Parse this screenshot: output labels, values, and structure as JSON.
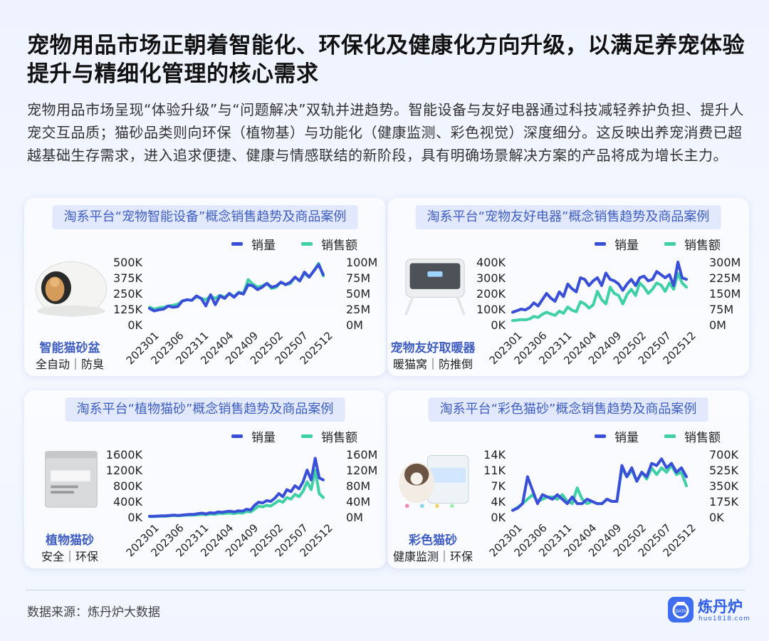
{
  "header": {
    "title": "宠物用品市场正朝着智能化、环保化及健康化方向升级，以满足养宠体验提升与精细化管理的核心需求",
    "description": "宠物用品市场呈现“体验升级”与“问题解决”双轨并进趋势。智能设备与友好电器通过科技减轻养护负担、提升人宠交互品质；猫砂品类则向环保（植物基）与功能化（健康监测、彩色视觉）深度细分。这反映出养宠消费已超越基础生存需求，进入追求便捷、健康与情感联结的新阶段，具有明确场景解决方案的产品将成为增长主力。"
  },
  "legend": {
    "volume": "销量",
    "sales": "销售额"
  },
  "colors": {
    "volume": "#3a4fd8",
    "sales": "#3fd1a5",
    "accent": "#3f5ec0"
  },
  "x_ticks": [
    "202301",
    "202306",
    "202311",
    "202404",
    "202409",
    "202502",
    "202507",
    "202512"
  ],
  "chart_data": [
    {
      "type": "line",
      "title": "淘系平台“宠物智能设备”概念销售趋势及商品案例",
      "product": {
        "name": "智能猫砂盆",
        "tags": "全自动｜防臭",
        "icon": "cat-litter-box-image"
      },
      "y_left": {
        "ticks": [
          "500K",
          "375K",
          "250K",
          "125K",
          "0K"
        ],
        "range": [
          0,
          500
        ]
      },
      "y_right": {
        "ticks": [
          "100M",
          "75M",
          "50M",
          "25M",
          "0M"
        ],
        "range": [
          0,
          100
        ]
      },
      "series": [
        {
          "name": "销量",
          "axis": "left",
          "values": [
            130,
            110,
            120,
            125,
            150,
            140,
            145,
            190,
            200,
            195,
            230,
            210,
            150,
            240,
            160,
            230,
            210,
            250,
            220,
            255,
            245,
            320,
            310,
            280,
            300,
            330,
            300,
            310,
            340,
            320,
            340,
            380,
            350,
            420,
            380,
            430,
            480,
            400
          ]
        },
        {
          "name": "销售额",
          "axis": "right",
          "values": [
            28,
            25,
            27,
            28,
            30,
            31,
            33,
            38,
            40,
            39,
            45,
            42,
            40,
            46,
            42,
            47,
            44,
            50,
            45,
            52,
            50,
            72,
            65,
            60,
            62,
            66,
            58,
            60,
            68,
            64,
            66,
            76,
            70,
            82,
            76,
            86,
            98,
            78
          ]
        }
      ]
    },
    {
      "type": "line",
      "title": "淘系平台“宠物友好电器”概念销售趋势及商品案例",
      "product": {
        "name": "宠物友好取暖器",
        "tags": "暖猫窝｜防推倒",
        "icon": "heater-image"
      },
      "y_left": {
        "ticks": [
          "400K",
          "300K",
          "200K",
          "100K",
          "0K"
        ],
        "range": [
          0,
          400
        ]
      },
      "y_right": {
        "ticks": [
          "300M",
          "225M",
          "150M",
          "75M",
          "0M"
        ],
        "range": [
          0,
          300
        ]
      },
      "series": [
        {
          "name": "销量",
          "axis": "left",
          "values": [
            80,
            90,
            100,
            95,
            110,
            140,
            120,
            160,
            200,
            170,
            150,
            210,
            180,
            260,
            230,
            210,
            300,
            290,
            250,
            280,
            300,
            250,
            330,
            290,
            280,
            260,
            220,
            260,
            290,
            250,
            300,
            310,
            280,
            290,
            340,
            320,
            300,
            320,
            250,
            400,
            300,
            290
          ]
        },
        {
          "name": "销售额",
          "axis": "right",
          "values": [
            20,
            22,
            25,
            24,
            28,
            40,
            35,
            50,
            60,
            52,
            45,
            65,
            55,
            85,
            70,
            62,
            110,
            100,
            80,
            95,
            160,
            120,
            100,
            180,
            150,
            140,
            100,
            145,
            170,
            140,
            200,
            180,
            150,
            170,
            200,
            190,
            160,
            200,
            170,
            245,
            200,
            180
          ]
        }
      ]
    },
    {
      "type": "line",
      "title": "淘系平台“植物猫砂”概念销售趋势及商品案例",
      "product": {
        "name": "植物猫砂",
        "tags": "安全｜环保",
        "icon": "cat-litter-bag-image"
      },
      "y_left": {
        "ticks": [
          "1600K",
          "1200K",
          "800K",
          "400K",
          "0K"
        ],
        "range": [
          0,
          1600
        ]
      },
      "y_right": {
        "ticks": [
          "160M",
          "120M",
          "80M",
          "40M",
          "0M"
        ],
        "range": [
          0,
          160
        ]
      },
      "series": [
        {
          "name": "销量",
          "axis": "left",
          "values": [
            20,
            20,
            25,
            30,
            30,
            40,
            50,
            40,
            50,
            60,
            70,
            70,
            90,
            100,
            80,
            110,
            100,
            130,
            120,
            140,
            150,
            130,
            160,
            150,
            200,
            180,
            300,
            380,
            360,
            420,
            400,
            480,
            600,
            520,
            700,
            650,
            800,
            720,
            900,
            1200,
            950,
            1500,
            1000,
            950
          ]
        },
        {
          "name": "销售额",
          "axis": "right",
          "values": [
            1,
            1,
            2,
            2,
            2,
            3,
            4,
            3,
            4,
            5,
            5,
            5,
            6,
            7,
            6,
            8,
            7,
            9,
            9,
            10,
            10,
            9,
            11,
            10,
            14,
            13,
            20,
            28,
            26,
            30,
            28,
            35,
            42,
            38,
            50,
            46,
            58,
            52,
            66,
            90,
            70,
            120,
            60,
            50
          ]
        }
      ]
    },
    {
      "type": "line",
      "title": "淘系平台“彩色猫砂”概念销售趋势及商品案例",
      "product": {
        "name": "彩色猫砂",
        "tags": "健康监测｜环保",
        "icon": "colorful-cat-litter-image"
      },
      "y_left": {
        "ticks": [
          "14K",
          "11K",
          "7K",
          "4K",
          "0K"
        ],
        "range": [
          0,
          14
        ]
      },
      "y_right": {
        "ticks": [
          "700K",
          "525K",
          "350K",
          "175K",
          "0K"
        ],
        "range": [
          0,
          700
        ]
      },
      "series": [
        {
          "name": "销量",
          "axis": "left",
          "values": [
            1.5,
            2.0,
            3.0,
            9.0,
            6.0,
            3.0,
            5.0,
            4.5,
            4.0,
            5.0,
            4.0,
            3.0,
            4.5,
            3.0,
            3.0,
            4.0,
            3.5,
            3.0,
            3.0,
            4.0,
            3.5,
            3.5,
            11.5,
            9.0,
            11.0,
            8.0,
            10.0,
            9.0,
            12.0,
            11.5,
            13.0,
            11.0,
            12.0,
            10.0,
            11.0,
            9.0
          ]
        },
        {
          "name": "销售额",
          "axis": "right",
          "values": [
            75,
            110,
            150,
            200,
            250,
            175,
            200,
            225,
            225,
            200,
            250,
            175,
            150,
            325,
            200,
            150,
            175,
            150,
            150,
            200,
            175,
            175,
            550,
            450,
            525,
            400,
            500,
            425,
            550,
            475,
            550,
            500,
            575,
            475,
            500,
            350
          ]
        }
      ]
    }
  ],
  "footer": {
    "source": "数据来源：炼丹炉大数据",
    "brand": "炼丹炉",
    "url": "huo1818.com",
    "logo_text": "DATA"
  }
}
